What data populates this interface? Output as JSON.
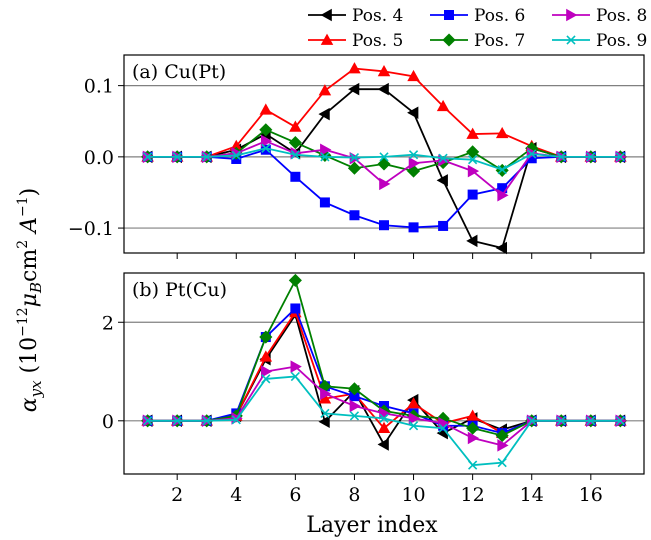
{
  "chart_data": {
    "type": "line",
    "xlabel": "Layer index",
    "ylabel": "α_yx (10^-12 μ_B cm^2 A^-1)",
    "x": [
      1,
      2,
      3,
      4,
      5,
      6,
      7,
      8,
      9,
      10,
      11,
      12,
      13,
      14,
      15,
      16,
      17
    ],
    "xlim": [
      0.2,
      17.8
    ],
    "xticks": [
      2,
      4,
      6,
      8,
      10,
      12,
      14,
      16
    ],
    "grid": "horizontal gridlines at major y ticks",
    "legend": {
      "placement": "top, above panels",
      "entries": [
        "Pos. 4",
        "Pos. 5",
        "Pos. 6",
        "Pos. 7",
        "Pos. 8",
        "Pos. 9"
      ]
    },
    "series_styles": [
      {
        "name": "Pos. 4",
        "color": "#000000",
        "marker": "triangle-left"
      },
      {
        "name": "Pos. 5",
        "color": "#ff0000",
        "marker": "triangle-up"
      },
      {
        "name": "Pos. 6",
        "color": "#0000ff",
        "marker": "square"
      },
      {
        "name": "Pos. 7",
        "color": "#008000",
        "marker": "diamond"
      },
      {
        "name": "Pos. 8",
        "color": "#bf00bf",
        "marker": "triangle-right"
      },
      {
        "name": "Pos. 9",
        "color": "#00bfbf",
        "marker": "x"
      }
    ],
    "panels": [
      {
        "label": "(a) Cu(Pt)",
        "ylim": [
          -0.135,
          0.143
        ],
        "yticks": [
          -0.1,
          0.0,
          0.1
        ],
        "ytick_labels": [
          "−0.1",
          "0.0",
          "0.1"
        ],
        "series": [
          {
            "name": "Pos. 4",
            "values": [
              0,
              0,
              0,
              0.01,
              0.032,
              0.005,
              0.06,
              0.095,
              0.095,
              0.062,
              -0.033,
              -0.118,
              -0.128,
              0.012,
              0,
              0,
              0
            ]
          },
          {
            "name": "Pos. 5",
            "values": [
              0,
              0,
              0,
              0.015,
              0.066,
              0.042,
              0.093,
              0.124,
              0.12,
              0.113,
              0.071,
              0.032,
              0.033,
              0.015,
              0,
              0,
              0
            ]
          },
          {
            "name": "Pos. 6",
            "values": [
              0,
              0,
              0,
              -0.003,
              0.01,
              -0.028,
              -0.064,
              -0.082,
              -0.096,
              -0.099,
              -0.097,
              -0.053,
              -0.044,
              -0.002,
              0,
              0,
              0
            ]
          },
          {
            "name": "Pos. 7",
            "values": [
              0,
              0,
              0,
              0.005,
              0.038,
              0.02,
              0.002,
              -0.016,
              -0.01,
              -0.02,
              -0.008,
              0.007,
              -0.019,
              0.012,
              0,
              0,
              0
            ]
          },
          {
            "name": "Pos. 8",
            "values": [
              0,
              0,
              0,
              0.005,
              0.022,
              0.005,
              0.01,
              -0.002,
              -0.038,
              -0.009,
              -0.005,
              -0.02,
              -0.054,
              0.005,
              0,
              0,
              0
            ]
          },
          {
            "name": "Pos. 9",
            "values": [
              0,
              0,
              0,
              0.002,
              0.012,
              0.003,
              0,
              -0.001,
              0,
              0.003,
              -0.002,
              -0.004,
              -0.018,
              0.004,
              0,
              0,
              0
            ]
          }
        ]
      },
      {
        "label": "(b) Pt(Cu)",
        "ylim": [
          -1.08,
          3.0
        ],
        "yticks": [
          0,
          2
        ],
        "ytick_labels": [
          "0",
          "2"
        ],
        "series": [
          {
            "name": "Pos. 4",
            "values": [
              0,
              0,
              0,
              0.1,
              1.25,
              2.15,
              -0.02,
              0.6,
              -0.48,
              0.42,
              -0.25,
              0.05,
              -0.18,
              0,
              0,
              0,
              0
            ]
          },
          {
            "name": "Pos. 5",
            "values": [
              0,
              0,
              0,
              0.1,
              1.3,
              2.2,
              0.45,
              0.55,
              -0.15,
              0.35,
              -0.05,
              0.1,
              -0.25,
              0,
              0,
              0,
              0
            ]
          },
          {
            "name": "Pos. 6",
            "values": [
              0,
              0,
              0,
              0.15,
              1.7,
              2.28,
              0.7,
              0.5,
              0.3,
              0.15,
              -0.1,
              -0.1,
              -0.25,
              0,
              0,
              0,
              0
            ]
          },
          {
            "name": "Pos. 7",
            "values": [
              0,
              0,
              0,
              0.1,
              1.7,
              2.85,
              0.7,
              0.65,
              0.2,
              0.1,
              0.05,
              -0.15,
              -0.3,
              0,
              0,
              0,
              0
            ]
          },
          {
            "name": "Pos. 8",
            "values": [
              0,
              0,
              0,
              0.05,
              1.0,
              1.1,
              0.55,
              0.3,
              0.15,
              0.05,
              -0.05,
              -0.35,
              -0.5,
              0,
              0,
              0,
              0
            ]
          },
          {
            "name": "Pos. 9",
            "values": [
              0,
              0,
              0,
              0.02,
              0.85,
              0.9,
              0.15,
              0.1,
              0.05,
              -0.1,
              -0.15,
              -0.9,
              -0.85,
              0,
              0,
              0,
              0
            ]
          }
        ]
      }
    ]
  }
}
